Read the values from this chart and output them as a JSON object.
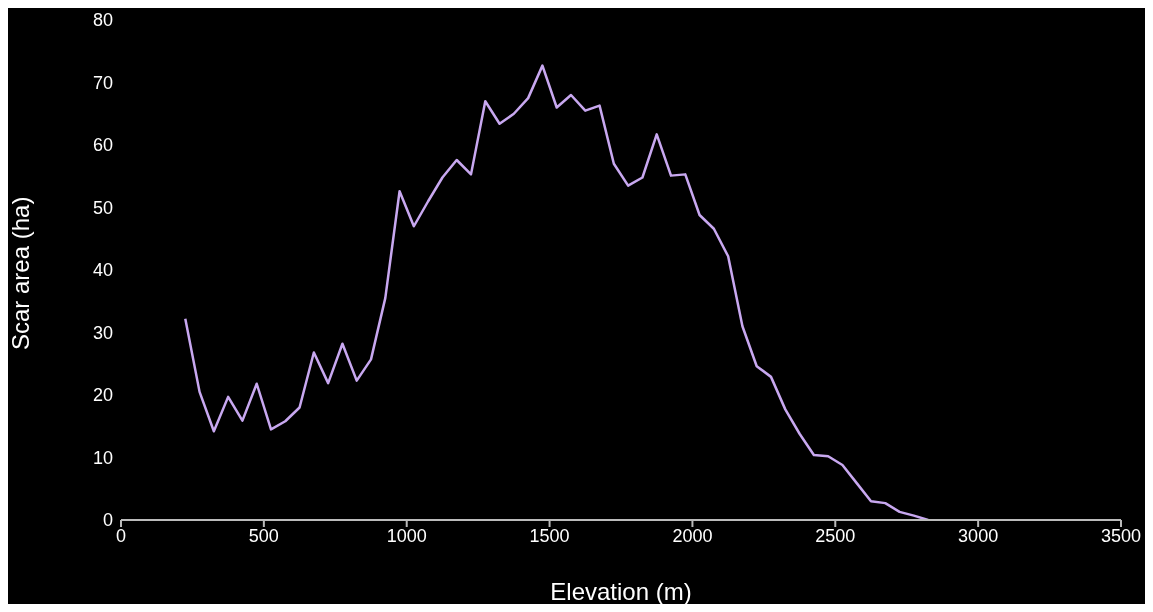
{
  "chart_data": {
    "type": "line",
    "xlabel": "Elevation (m)",
    "ylabel": "Scar area (ha)",
    "x": [
      225,
      275,
      325,
      375,
      425,
      475,
      525,
      575,
      625,
      675,
      725,
      775,
      825,
      875,
      925,
      975,
      1025,
      1075,
      1125,
      1175,
      1225,
      1275,
      1325,
      1375,
      1425,
      1475,
      1525,
      1575,
      1625,
      1675,
      1725,
      1775,
      1825,
      1875,
      1925,
      1975,
      2025,
      2075,
      2125,
      2175,
      2225,
      2275,
      2325,
      2375,
      2425,
      2475,
      2525,
      2575,
      2625,
      2675,
      2725,
      2775,
      2825
    ],
    "series": [
      {
        "color": "#c8a8f0",
        "values": [
          32.2,
          20.5,
          14.2,
          19.7,
          15.9,
          21.8,
          14.5,
          15.8,
          18,
          26.8,
          21.9,
          28.2,
          22.3,
          25.7,
          35.5,
          52.6,
          47,
          51,
          54.8,
          57.6,
          55.3,
          67,
          63.4,
          65,
          67.5,
          72.7,
          66,
          68,
          65.5,
          66.3,
          57,
          53.5,
          54.8,
          61.7,
          55.1,
          55.3,
          48.8,
          46.6,
          42.2,
          31,
          24.6,
          22.9,
          17.7,
          13.8,
          10.4,
          10.2,
          8.8,
          5.9,
          3,
          2.7,
          1.3,
          0.7,
          0
        ]
      }
    ],
    "xlim": [
      0,
      3500
    ],
    "xticks": [
      0,
      500,
      1000,
      1500,
      2000,
      2500,
      3000,
      3500
    ],
    "ylim": [
      0,
      80
    ],
    "yticks": [
      0,
      10,
      20,
      30,
      40,
      50,
      60,
      70,
      80
    ],
    "marker": "none",
    "line_style": "solid"
  }
}
